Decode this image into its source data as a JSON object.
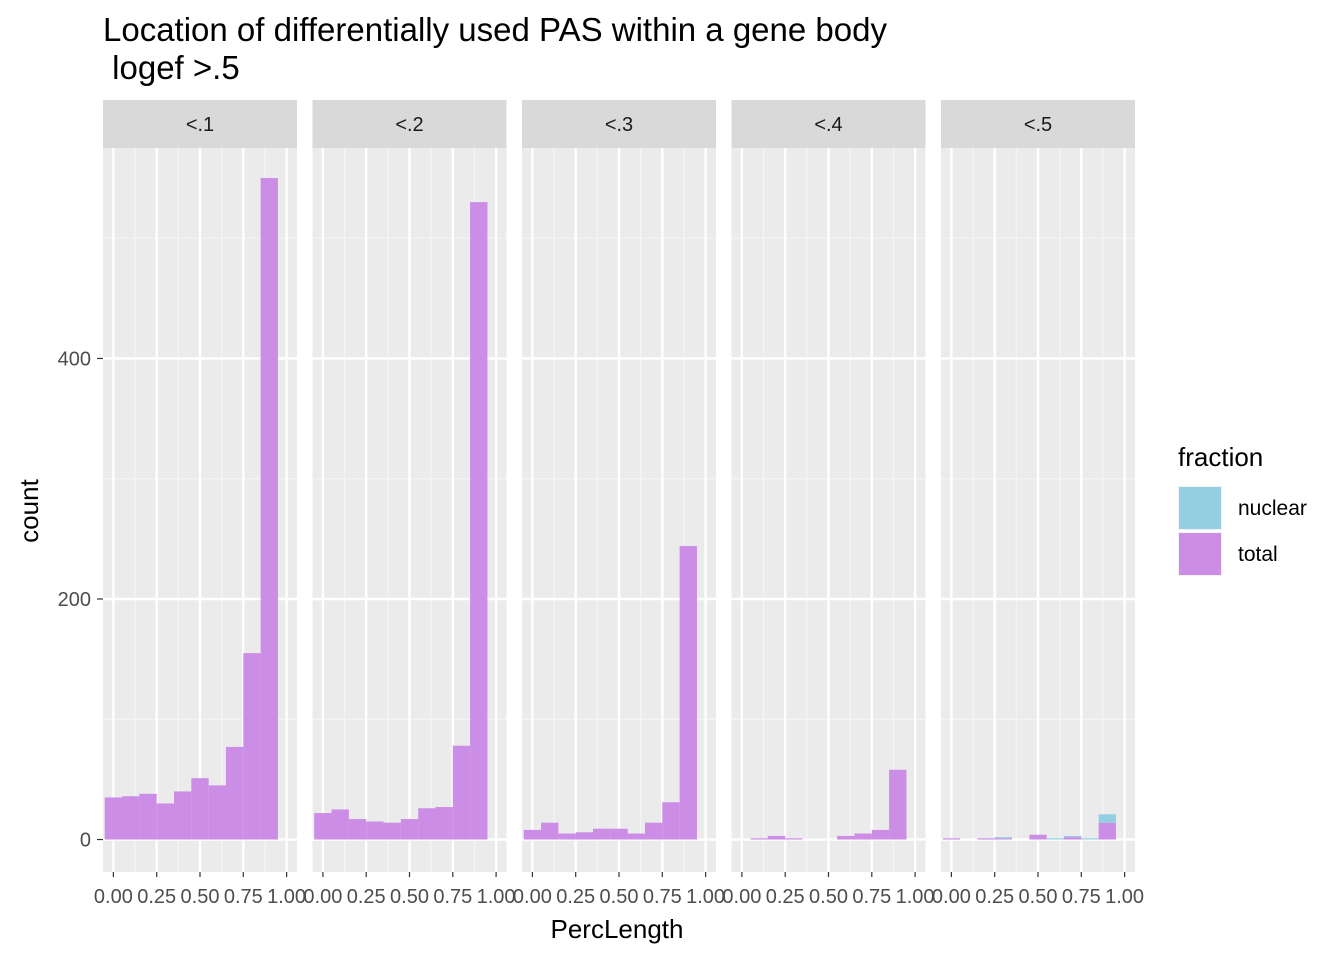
{
  "chart_data": {
    "type": "bar",
    "chart_kind": "faceted stacked histogram",
    "title": "Location of differentially used PAS within a gene body",
    "subtitle": " logef >.5",
    "xlabel": "PercLength",
    "ylabel": "count",
    "xlim": [
      -0.06,
      1.06
    ],
    "ylim": [
      -27,
      575
    ],
    "x_ticks": [
      0,
      0.25,
      0.5,
      0.75,
      1
    ],
    "x_tick_labels": [
      "0.00",
      "0.25",
      "0.50",
      "0.75",
      "1.00"
    ],
    "y_ticks": [
      0,
      200,
      400
    ],
    "y_tick_labels": [
      "0",
      "200",
      "400"
    ],
    "bin_centers": [
      0,
      0.1,
      0.2,
      0.3,
      0.4,
      0.5,
      0.6,
      0.7,
      0.8,
      0.9,
      1.0
    ],
    "bin_width": 0.1,
    "grid": true,
    "legend": {
      "title": "fraction",
      "position": "right",
      "entries": [
        {
          "name": "nuclear",
          "color": "#93CEE3"
        },
        {
          "name": "total",
          "color": "#CB8DE5"
        }
      ]
    },
    "facets": [
      {
        "label": "<.1",
        "series": [
          {
            "name": "nuclear",
            "values": [
              0,
              0,
              0,
              0,
              0,
              0,
              0,
              0,
              0,
              0,
              0
            ]
          },
          {
            "name": "total",
            "values": [
              35,
              36,
              38,
              30,
              40,
              51,
              45,
              77,
              155,
              550,
              0
            ]
          }
        ]
      },
      {
        "label": "<.2",
        "series": [
          {
            "name": "nuclear",
            "values": [
              0,
              0,
              0,
              0,
              0,
              0,
              0,
              0,
              0,
              0,
              0
            ]
          },
          {
            "name": "total",
            "values": [
              22,
              25,
              17,
              15,
              14,
              17,
              26,
              27,
              78,
              530,
              0
            ]
          }
        ]
      },
      {
        "label": "<.3",
        "series": [
          {
            "name": "nuclear",
            "values": [
              0,
              0,
              0,
              0,
              0,
              0,
              0,
              0,
              0,
              0,
              0
            ]
          },
          {
            "name": "total",
            "values": [
              8,
              14,
              5,
              6,
              9,
              9,
              5,
              14,
              31,
              244,
              0
            ]
          }
        ]
      },
      {
        "label": "<.4",
        "series": [
          {
            "name": "nuclear",
            "values": [
              0,
              0,
              0,
              0,
              0,
              0,
              0,
              0,
              0,
              0,
              0
            ]
          },
          {
            "name": "total",
            "values": [
              0,
              1,
              3,
              1,
              0,
              0,
              3,
              5,
              8,
              58,
              0
            ]
          }
        ]
      },
      {
        "label": "<.5",
        "series": [
          {
            "name": "nuclear",
            "values": [
              0,
              0,
              0,
              1,
              0,
              0,
              1,
              1,
              1,
              7,
              0
            ]
          },
          {
            "name": "total",
            "values": [
              1,
              0,
              1,
              1,
              0,
              4,
              0,
              2,
              0,
              14,
              0
            ]
          }
        ]
      }
    ]
  }
}
